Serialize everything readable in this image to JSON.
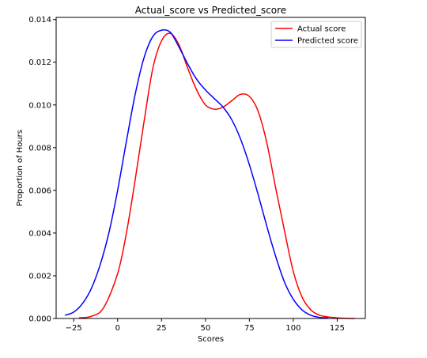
{
  "chart_data": {
    "type": "line",
    "title": "Actual_score vs Predicted_score",
    "xlabel": "Scores",
    "ylabel": "Proportion of Hours",
    "xlim": [
      -35,
      141
    ],
    "ylim": [
      0,
      0.0141
    ],
    "x_ticks": [
      -25,
      0,
      25,
      50,
      75,
      100,
      125
    ],
    "x_tick_labels": [
      "−25",
      "0",
      "25",
      "50",
      "75",
      "100",
      "125"
    ],
    "y_ticks": [
      0.0,
      0.002,
      0.004,
      0.006,
      0.008,
      0.01,
      0.012,
      0.014
    ],
    "y_tick_labels": [
      "0.000",
      "0.002",
      "0.004",
      "0.006",
      "0.008",
      "0.010",
      "0.012",
      "0.014"
    ],
    "grid": false,
    "legend_position": "top-right",
    "series": [
      {
        "name": "Actual score",
        "color": "#ff0000",
        "x": [
          -22,
          -15,
          -8,
          0,
          5,
          10,
          15,
          20,
          25,
          30,
          35,
          40,
          45,
          50,
          55,
          60,
          65,
          70,
          75,
          80,
          85,
          90,
          95,
          100,
          105,
          110,
          115,
          120,
          125,
          130,
          135
        ],
        "y": [
          3e-05,
          0.0001,
          0.0005,
          0.0021,
          0.004,
          0.0065,
          0.0092,
          0.0117,
          0.013,
          0.01335,
          0.0128,
          0.0117,
          0.0107,
          0.01,
          0.0098,
          0.0099,
          0.0102,
          0.0105,
          0.0104,
          0.0097,
          0.0082,
          0.0061,
          0.0041,
          0.0022,
          0.001,
          0.0004,
          0.00015,
          7e-05,
          3e-05,
          1e-05,
          0.0
        ]
      },
      {
        "name": "Predicted score",
        "color": "#0000ff",
        "x": [
          -30,
          -25,
          -20,
          -15,
          -10,
          -5,
          0,
          5,
          10,
          15,
          20,
          25,
          30,
          35,
          40,
          45,
          50,
          55,
          60,
          65,
          70,
          75,
          80,
          85,
          90,
          95,
          100,
          105,
          110,
          115,
          120
        ],
        "y": [
          0.00015,
          0.0003,
          0.0007,
          0.0014,
          0.0025,
          0.004,
          0.006,
          0.0083,
          0.0105,
          0.0122,
          0.0132,
          0.0135,
          0.0134,
          0.0127,
          0.0119,
          0.0112,
          0.0107,
          0.0103,
          0.0099,
          0.0093,
          0.0084,
          0.0072,
          0.0058,
          0.0043,
          0.0029,
          0.0017,
          0.0009,
          0.0004,
          0.00015,
          5e-05,
          2e-05
        ]
      }
    ]
  }
}
